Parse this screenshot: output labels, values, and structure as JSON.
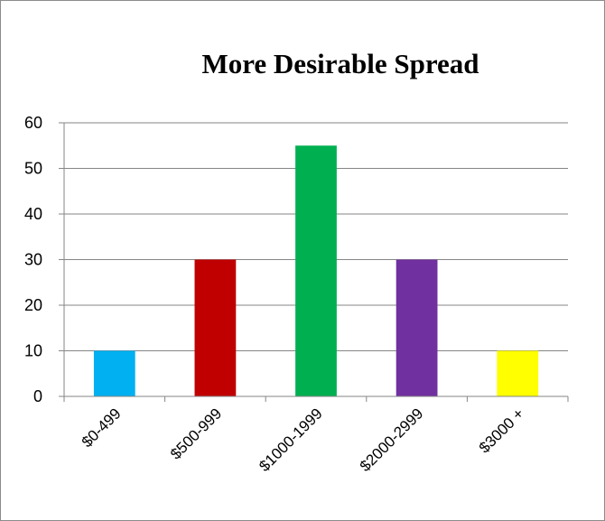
{
  "chart_data": {
    "type": "bar",
    "title": "More Desirable Spread",
    "categories": [
      "$0-499",
      "$500-999",
      "$1000-1999",
      "$2000-2999",
      "$3000 +"
    ],
    "values": [
      10,
      30,
      55,
      30,
      10
    ],
    "bar_colors": [
      "#00b0f0",
      "#c00000",
      "#00b050",
      "#7030a0",
      "#ffff00"
    ],
    "ylim": [
      0,
      60
    ],
    "y_ticks": [
      0,
      10,
      20,
      30,
      40,
      50,
      60
    ],
    "grid": true,
    "legend": "none"
  },
  "colors": {
    "gridline": "#868686",
    "axis": "#868686"
  }
}
